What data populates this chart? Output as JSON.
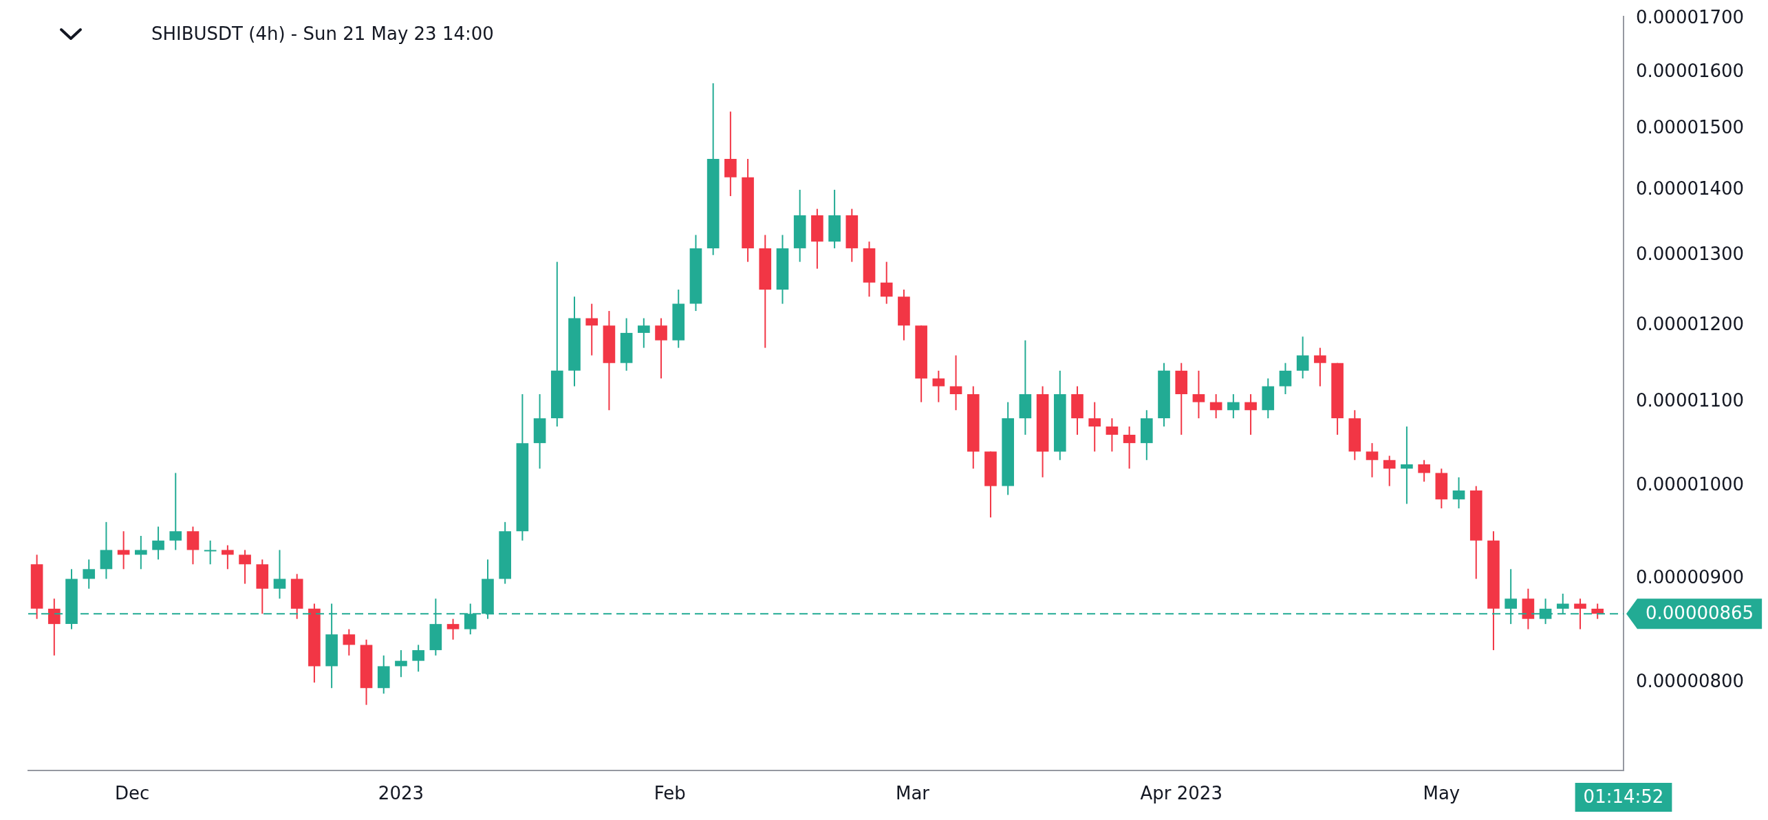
{
  "chart_data": {
    "type": "candlestick",
    "title": "SHIBUSDT (4h) - Sun 21 May 23 14:00",
    "x": [
      "2022-11-20",
      "2022-11-22",
      "2022-11-24",
      "2022-11-26",
      "2022-11-28",
      "2022-11-30",
      "2022-12-02",
      "2022-12-04",
      "2022-12-06",
      "2022-12-08",
      "2022-12-10",
      "2022-12-12",
      "2022-12-14",
      "2022-12-16",
      "2022-12-18",
      "2022-12-20",
      "2022-12-22",
      "2022-12-24",
      "2022-12-26",
      "2022-12-28",
      "2022-12-30",
      "2023-01-01",
      "2023-01-03",
      "2023-01-05",
      "2023-01-07",
      "2023-01-09",
      "2023-01-11",
      "2023-01-13",
      "2023-01-15",
      "2023-01-17",
      "2023-01-19",
      "2023-01-21",
      "2023-01-23",
      "2023-01-25",
      "2023-01-27",
      "2023-01-29",
      "2023-01-31",
      "2023-02-02",
      "2023-02-04",
      "2023-02-06",
      "2023-02-08",
      "2023-02-10",
      "2023-02-12",
      "2023-02-14",
      "2023-02-16",
      "2023-02-18",
      "2023-02-20",
      "2023-02-22",
      "2023-02-24",
      "2023-02-26",
      "2023-02-28",
      "2023-03-02",
      "2023-03-04",
      "2023-03-06",
      "2023-03-08",
      "2023-03-10",
      "2023-03-12",
      "2023-03-14",
      "2023-03-16",
      "2023-03-18",
      "2023-03-20",
      "2023-03-22",
      "2023-03-24",
      "2023-03-26",
      "2023-03-28",
      "2023-03-30",
      "2023-04-01",
      "2023-04-03",
      "2023-04-05",
      "2023-04-07",
      "2023-04-09",
      "2023-04-11",
      "2023-04-13",
      "2023-04-15",
      "2023-04-17",
      "2023-04-19",
      "2023-04-21",
      "2023-04-23",
      "2023-04-25",
      "2023-04-27",
      "2023-04-29",
      "2023-05-01",
      "2023-05-03",
      "2023-05-05",
      "2023-05-07",
      "2023-05-09",
      "2023-05-11",
      "2023-05-13",
      "2023-05-15",
      "2023-05-17",
      "2023-05-19"
    ],
    "ohlc": [
      [
        9.15e-06,
        9.25e-06,
        8.6e-06,
        8.7e-06
      ],
      [
        8.7e-06,
        8.8e-06,
        8.25e-06,
        8.55e-06
      ],
      [
        8.55e-06,
        9.1e-06,
        8.5e-06,
        9e-06
      ],
      [
        9e-06,
        9.2e-06,
        8.9e-06,
        9.1e-06
      ],
      [
        9.1e-06,
        9.6e-06,
        9e-06,
        9.3e-06
      ],
      [
        9.3e-06,
        9.5e-06,
        9.1e-06,
        9.25e-06
      ],
      [
        9.25e-06,
        9.45e-06,
        9.1e-06,
        9.3e-06
      ],
      [
        9.3e-06,
        9.55e-06,
        9.2e-06,
        9.4e-06
      ],
      [
        9.4e-06,
        1.015e-05,
        9.3e-06,
        9.5e-06
      ],
      [
        9.5e-06,
        9.55e-06,
        9.15e-06,
        9.3e-06
      ],
      [
        9.3e-06,
        9.4e-06,
        9.15e-06,
        9.3e-06
      ],
      [
        9.3e-06,
        9.35e-06,
        9.1e-06,
        9.25e-06
      ],
      [
        9.25e-06,
        9.3e-06,
        8.95e-06,
        9.15e-06
      ],
      [
        9.15e-06,
        9.2e-06,
        8.65e-06,
        8.9e-06
      ],
      [
        8.9e-06,
        9.3e-06,
        8.8e-06,
        9e-06
      ],
      [
        9e-06,
        9.05e-06,
        8.6e-06,
        8.7e-06
      ],
      [
        8.7e-06,
        8.75e-06,
        8e-06,
        8.15e-06
      ],
      [
        8.15e-06,
        8.75e-06,
        7.95e-06,
        8.45e-06
      ],
      [
        8.45e-06,
        8.5e-06,
        8.25e-06,
        8.35e-06
      ],
      [
        8.35e-06,
        8.4e-06,
        7.8e-06,
        7.95e-06
      ],
      [
        7.95e-06,
        8.25e-06,
        7.9e-06,
        8.15e-06
      ],
      [
        8.15e-06,
        8.3e-06,
        8.05e-06,
        8.2e-06
      ],
      [
        8.2e-06,
        8.35e-06,
        8.1e-06,
        8.3e-06
      ],
      [
        8.3e-06,
        8.8e-06,
        8.25e-06,
        8.55e-06
      ],
      [
        8.55e-06,
        8.6e-06,
        8.4e-06,
        8.5e-06
      ],
      [
        8.5e-06,
        8.75e-06,
        8.45e-06,
        8.65e-06
      ],
      [
        8.65e-06,
        9.2e-06,
        8.6e-06,
        9e-06
      ],
      [
        9e-06,
        9.6e-06,
        8.95e-06,
        9.5e-06
      ],
      [
        9.5e-06,
        1.11e-05,
        9.4e-06,
        1.05e-05
      ],
      [
        1.05e-05,
        1.11e-05,
        1.02e-05,
        1.08e-05
      ],
      [
        1.08e-05,
        1.29e-05,
        1.07e-05,
        1.14e-05
      ],
      [
        1.14e-05,
        1.24e-05,
        1.12e-05,
        1.21e-05
      ],
      [
        1.21e-05,
        1.23e-05,
        1.16e-05,
        1.2e-05
      ],
      [
        1.2e-05,
        1.22e-05,
        1.09e-05,
        1.15e-05
      ],
      [
        1.15e-05,
        1.21e-05,
        1.14e-05,
        1.19e-05
      ],
      [
        1.19e-05,
        1.21e-05,
        1.17e-05,
        1.2e-05
      ],
      [
        1.2e-05,
        1.21e-05,
        1.13e-05,
        1.18e-05
      ],
      [
        1.18e-05,
        1.25e-05,
        1.17e-05,
        1.23e-05
      ],
      [
        1.23e-05,
        1.33e-05,
        1.22e-05,
        1.31e-05
      ],
      [
        1.31e-05,
        1.58e-05,
        1.3e-05,
        1.45e-05
      ],
      [
        1.45e-05,
        1.53e-05,
        1.39e-05,
        1.42e-05
      ],
      [
        1.42e-05,
        1.45e-05,
        1.29e-05,
        1.31e-05
      ],
      [
        1.31e-05,
        1.33e-05,
        1.17e-05,
        1.25e-05
      ],
      [
        1.25e-05,
        1.33e-05,
        1.23e-05,
        1.31e-05
      ],
      [
        1.31e-05,
        1.4e-05,
        1.29e-05,
        1.36e-05
      ],
      [
        1.36e-05,
        1.37e-05,
        1.28e-05,
        1.32e-05
      ],
      [
        1.32e-05,
        1.4e-05,
        1.31e-05,
        1.36e-05
      ],
      [
        1.36e-05,
        1.37e-05,
        1.29e-05,
        1.31e-05
      ],
      [
        1.31e-05,
        1.32e-05,
        1.24e-05,
        1.26e-05
      ],
      [
        1.26e-05,
        1.29e-05,
        1.23e-05,
        1.24e-05
      ],
      [
        1.24e-05,
        1.25e-05,
        1.18e-05,
        1.2e-05
      ],
      [
        1.2e-05,
        1.2e-05,
        1.1e-05,
        1.13e-05
      ],
      [
        1.13e-05,
        1.14e-05,
        1.1e-05,
        1.12e-05
      ],
      [
        1.12e-05,
        1.16e-05,
        1.09e-05,
        1.11e-05
      ],
      [
        1.11e-05,
        1.12e-05,
        1.02e-05,
        1.04e-05
      ],
      [
        1.04e-05,
        1.04e-05,
        9.65e-06,
        1e-05
      ],
      [
        1e-05,
        1.1e-05,
        9.9e-06,
        1.08e-05
      ],
      [
        1.08e-05,
        1.18e-05,
        1.06e-05,
        1.11e-05
      ],
      [
        1.11e-05,
        1.12e-05,
        1.01e-05,
        1.04e-05
      ],
      [
        1.04e-05,
        1.14e-05,
        1.03e-05,
        1.11e-05
      ],
      [
        1.11e-05,
        1.12e-05,
        1.06e-05,
        1.08e-05
      ],
      [
        1.08e-05,
        1.1e-05,
        1.04e-05,
        1.07e-05
      ],
      [
        1.07e-05,
        1.08e-05,
        1.04e-05,
        1.06e-05
      ],
      [
        1.06e-05,
        1.07e-05,
        1.02e-05,
        1.05e-05
      ],
      [
        1.05e-05,
        1.09e-05,
        1.03e-05,
        1.08e-05
      ],
      [
        1.08e-05,
        1.15e-05,
        1.07e-05,
        1.14e-05
      ],
      [
        1.14e-05,
        1.15e-05,
        1.06e-05,
        1.11e-05
      ],
      [
        1.11e-05,
        1.14e-05,
        1.08e-05,
        1.1e-05
      ],
      [
        1.1e-05,
        1.11e-05,
        1.08e-05,
        1.09e-05
      ],
      [
        1.09e-05,
        1.11e-05,
        1.08e-05,
        1.1e-05
      ],
      [
        1.1e-05,
        1.11e-05,
        1.06e-05,
        1.09e-05
      ],
      [
        1.09e-05,
        1.13e-05,
        1.08e-05,
        1.12e-05
      ],
      [
        1.12e-05,
        1.15e-05,
        1.11e-05,
        1.14e-05
      ],
      [
        1.14e-05,
        1.185e-05,
        1.13e-05,
        1.16e-05
      ],
      [
        1.16e-05,
        1.17e-05,
        1.12e-05,
        1.15e-05
      ],
      [
        1.15e-05,
        1.15e-05,
        1.06e-05,
        1.08e-05
      ],
      [
        1.08e-05,
        1.09e-05,
        1.03e-05,
        1.04e-05
      ],
      [
        1.04e-05,
        1.05e-05,
        1.01e-05,
        1.03e-05
      ],
      [
        1.03e-05,
        1.035e-05,
        1e-05,
        1.02e-05
      ],
      [
        1.02e-05,
        1.07e-05,
        9.8e-06,
        1.025e-05
      ],
      [
        1.025e-05,
        1.03e-05,
        1.005e-05,
        1.015e-05
      ],
      [
        1.015e-05,
        1.02e-05,
        9.75e-06,
        9.85e-06
      ],
      [
        9.85e-06,
        1.01e-05,
        9.75e-06,
        9.95e-06
      ],
      [
        9.95e-06,
        1e-05,
        9e-06,
        9.4e-06
      ],
      [
        9.4e-06,
        9.5e-06,
        8.3e-06,
        8.7e-06
      ],
      [
        8.7e-06,
        9.1e-06,
        8.55e-06,
        8.8e-06
      ],
      [
        8.8e-06,
        8.9e-06,
        8.5e-06,
        8.6e-06
      ],
      [
        8.6e-06,
        8.8e-06,
        8.55e-06,
        8.7e-06
      ],
      [
        8.7e-06,
        8.85e-06,
        8.65e-06,
        8.75e-06
      ],
      [
        8.75e-06,
        8.8e-06,
        8.5e-06,
        8.7e-06
      ],
      [
        8.7e-06,
        8.75e-06,
        8.6e-06,
        8.65e-06
      ]
    ],
    "colors": [
      "#f23645",
      "#f23645",
      "#22ab94",
      "#22ab94",
      "#22ab94",
      "#f23645",
      "#22ab94",
      "#22ab94",
      "#22ab94",
      "#f23645",
      "#22ab94",
      "#f23645",
      "#f23645",
      "#f23645",
      "#22ab94",
      "#f23645",
      "#f23645",
      "#22ab94",
      "#f23645",
      "#f23645",
      "#22ab94",
      "#22ab94",
      "#22ab94",
      "#22ab94",
      "#f23645",
      "#22ab94",
      "#22ab94",
      "#22ab94",
      "#22ab94",
      "#22ab94",
      "#22ab94",
      "#22ab94",
      "#f23645",
      "#f23645",
      "#22ab94",
      "#22ab94",
      "#f23645",
      "#22ab94",
      "#22ab94",
      "#22ab94",
      "#f23645",
      "#f23645",
      "#f23645",
      "#22ab94",
      "#22ab94",
      "#f23645",
      "#22ab94",
      "#f23645",
      "#f23645",
      "#f23645",
      "#f23645",
      "#f23645",
      "#f23645",
      "#f23645",
      "#f23645",
      "#f23645",
      "#22ab94",
      "#22ab94",
      "#f23645",
      "#22ab94",
      "#f23645",
      "#f23645",
      "#f23645",
      "#f23645",
      "#22ab94",
      "#22ab94",
      "#f23645",
      "#f23645",
      "#f23645",
      "#22ab94",
      "#f23645",
      "#22ab94",
      "#22ab94",
      "#22ab94",
      "#f23645",
      "#f23645",
      "#f23645",
      "#f23645",
      "#f23645",
      "#22ab94",
      "#f23645",
      "#f23645",
      "#22ab94",
      "#f23645",
      "#f23645",
      "#22ab94",
      "#f23645",
      "#22ab94",
      "#22ab94",
      "#f23645",
      "#f23645"
    ],
    "xlim": [
      "2022-11-19",
      "2023-05-22"
    ],
    "xticks": [
      {
        "value": "2022-12-01",
        "label": "Dec"
      },
      {
        "value": "2023-01-01",
        "label": "2023"
      },
      {
        "value": "2023-02-01",
        "label": "Feb"
      },
      {
        "value": "2023-03-01",
        "label": "Mar"
      },
      {
        "value": "2023-04-01",
        "label": "Apr 2023"
      },
      {
        "value": "2023-05-01",
        "label": "May"
      }
    ],
    "ylim": [
      7.24e-06,
      1.705e-05
    ],
    "yticks": [
      {
        "value": 8e-06,
        "label": "0.00000800"
      },
      {
        "value": 9e-06,
        "label": "0.00000900"
      },
      {
        "value": 1e-05,
        "label": "0.00001000"
      },
      {
        "value": 1.1e-05,
        "label": "0.00001100"
      },
      {
        "value": 1.2e-05,
        "label": "0.00001200"
      },
      {
        "value": 1.3e-05,
        "label": "0.00001300"
      },
      {
        "value": 1.4e-05,
        "label": "0.00001400"
      },
      {
        "value": 1.5e-05,
        "label": "0.00001500"
      },
      {
        "value": 1.6e-05,
        "label": "0.00001600"
      },
      {
        "value": 1.7e-05,
        "label": "0.00001700"
      }
    ],
    "log": true,
    "grid": false,
    "ref_lines": [
      {
        "axis": "y",
        "value": 8.65e-06,
        "label": "0.00000865",
        "color": "#22ab94",
        "line_style": "dashed"
      }
    ],
    "annotations": [
      "01:14:52"
    ]
  }
}
